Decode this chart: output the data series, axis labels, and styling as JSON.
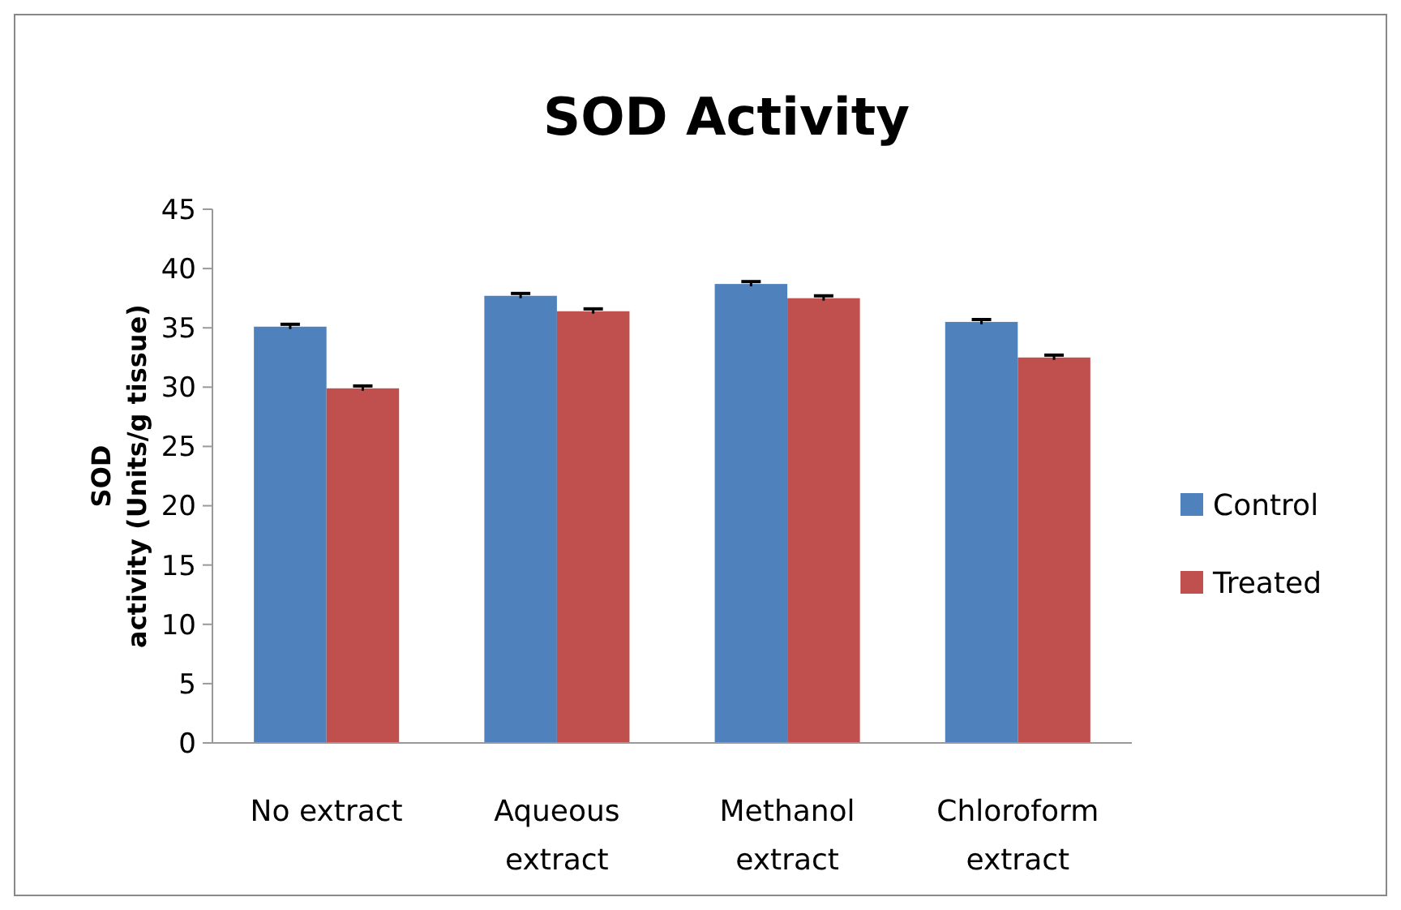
{
  "chart_data": {
    "type": "bar",
    "title": "SOD Activity",
    "ylabel": "SOD activity (Units/g tissue)",
    "categories": [
      "No extract",
      "Aqueous extract",
      "Methanol extract",
      "Chloroform extract"
    ],
    "series": [
      {
        "name": "Control",
        "color": "#4f81bd",
        "values": [
          35.1,
          37.7,
          38.7,
          35.5
        ],
        "errors": [
          0.2,
          0.2,
          0.2,
          0.2
        ]
      },
      {
        "name": "Treated",
        "color": "#c0504d",
        "values": [
          29.9,
          36.4,
          37.5,
          32.5
        ],
        "errors": [
          0.2,
          0.2,
          0.2,
          0.2
        ]
      }
    ],
    "ylim": [
      0,
      45
    ],
    "yticks": [
      0,
      5,
      10,
      15,
      20,
      25,
      30,
      35,
      40,
      45
    ],
    "legend": "right",
    "grid": false
  }
}
